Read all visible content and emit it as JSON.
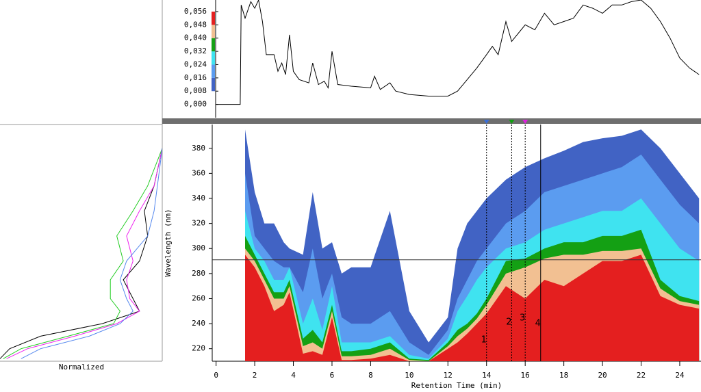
{
  "chart_data": [
    {
      "type": "line",
      "xlim": [
        -0.2,
        25.1
      ],
      "ylim": [
        -0.008,
        0.063
      ],
      "yticks": [
        {
          "value": 0,
          "label": "0,000"
        },
        {
          "value": 0.008,
          "label": "0,008"
        },
        {
          "value": 0.016,
          "label": "0,016"
        },
        {
          "value": 0.024,
          "label": "0,024"
        },
        {
          "value": 0.032,
          "label": "0,032"
        },
        {
          "value": 0.04,
          "label": "0,040"
        },
        {
          "value": 0.048,
          "label": "0,048"
        },
        {
          "value": 0.056,
          "label": "0,056"
        }
      ],
      "color": "#000000",
      "x": [
        -0.2,
        1.25,
        1.3,
        1.5,
        1.8,
        2.0,
        2.2,
        2.4,
        2.6,
        3.0,
        3.2,
        3.4,
        3.6,
        3.8,
        4.0,
        4.3,
        4.8,
        5.0,
        5.3,
        5.6,
        5.8,
        6.0,
        6.3,
        7,
        8,
        8.2,
        8.5,
        9.0,
        9.3,
        10,
        11,
        12,
        12.5,
        13,
        13.5,
        14,
        14.3,
        14.6,
        15,
        15.3,
        16,
        16.5,
        17,
        17.5,
        18,
        18.5,
        19,
        19.5,
        20,
        20.5,
        21,
        21.5,
        22,
        22.5,
        23,
        23.5,
        24,
        24.5,
        25
      ],
      "values": [
        0,
        0,
        0.06,
        0.052,
        0.062,
        0.058,
        0.063,
        0.05,
        0.03,
        0.03,
        0.02,
        0.025,
        0.018,
        0.042,
        0.02,
        0.015,
        0.013,
        0.025,
        0.012,
        0.014,
        0.01,
        0.032,
        0.012,
        0.011,
        0.01,
        0.017,
        0.009,
        0.013,
        0.008,
        0.006,
        0.005,
        0.005,
        0.008,
        0.015,
        0.022,
        0.03,
        0.035,
        0.03,
        0.05,
        0.038,
        0.048,
        0.045,
        0.055,
        0.048,
        0.05,
        0.052,
        0.06,
        0.058,
        0.055,
        0.06,
        0.06,
        0.062,
        0.063,
        0.058,
        0.05,
        0.04,
        0.028,
        0.022,
        0.018
      ]
    },
    {
      "type": "contour",
      "xlim": [
        -0.2,
        25.1
      ],
      "ylim": [
        210,
        399
      ],
      "x_label": "Retention Time (min)",
      "y_label": "Wavelength (nm)",
      "xticks": [
        0,
        2,
        4,
        6,
        8,
        10,
        12,
        14,
        16,
        18,
        20,
        22,
        24
      ],
      "yticks": [
        220,
        240,
        260,
        280,
        300,
        320,
        340,
        360,
        380
      ],
      "x": [
        1.5,
        2,
        2.5,
        3,
        3.5,
        3.8,
        4.5,
        5,
        5.5,
        6,
        6.5,
        7,
        8,
        9,
        10,
        11,
        12,
        12.5,
        13,
        13.5,
        14,
        15,
        16,
        17,
        18,
        19,
        20,
        21,
        22,
        23,
        24,
        25
      ],
      "series": [
        {
          "level": 0.008,
          "color": "#4163c4",
          "values": [
            395,
            345,
            320,
            320,
            305,
            300,
            295,
            345,
            300,
            305,
            280,
            285,
            285,
            330,
            250,
            225,
            245,
            300,
            320,
            330,
            340,
            355,
            365,
            372,
            378,
            385,
            388,
            390,
            395,
            380,
            360,
            340
          ]
        },
        {
          "level": 0.016,
          "color": "#5b9cf0",
          "values": [
            360,
            310,
            300,
            290,
            285,
            285,
            265,
            300,
            260,
            280,
            245,
            240,
            240,
            250,
            225,
            215,
            235,
            260,
            275,
            290,
            300,
            320,
            330,
            345,
            350,
            355,
            360,
            365,
            375,
            355,
            335,
            320
          ]
        },
        {
          "level": 0.024,
          "color": "#3fe3f0",
          "values": [
            330,
            300,
            290,
            275,
            275,
            285,
            240,
            260,
            235,
            270,
            225,
            225,
            225,
            230,
            215,
            212,
            228,
            250,
            262,
            275,
            285,
            300,
            305,
            315,
            320,
            325,
            330,
            330,
            340,
            320,
            300,
            290
          ]
        },
        {
          "level": 0.032,
          "color": "#14a014",
          "values": [
            310,
            295,
            280,
            265,
            265,
            275,
            228,
            235,
            225,
            255,
            218,
            218,
            220,
            225,
            212,
            211,
            225,
            235,
            240,
            248,
            260,
            290,
            292,
            300,
            305,
            305,
            310,
            310,
            315,
            275,
            262,
            258
          ]
        },
        {
          "level": 0.04,
          "color": "#f2c092",
          "values": [
            300,
            290,
            275,
            260,
            260,
            270,
            222,
            225,
            220,
            250,
            214,
            214,
            215,
            220,
            211,
            210,
            222,
            230,
            236,
            244,
            255,
            280,
            285,
            292,
            295,
            295,
            298,
            298,
            300,
            268,
            258,
            255
          ]
        },
        {
          "level": 0.048,
          "color": "#e41f1f",
          "values": [
            295,
            285,
            270,
            250,
            255,
            265,
            216,
            218,
            215,
            245,
            211,
            211,
            212,
            215,
            210,
            210,
            220,
            225,
            232,
            240,
            248,
            270,
            260,
            275,
            270,
            280,
            290,
            290,
            295,
            262,
            255,
            252
          ]
        }
      ],
      "markers": [
        {
          "label": "1",
          "x": 14.0,
          "color": "#3a6fd8",
          "dashed": true
        },
        {
          "label": "2",
          "x": 15.3,
          "color": "#10a010",
          "dashed": true
        },
        {
          "label": "3",
          "x": 16.0,
          "color": "#e020e0",
          "dashed": true
        },
        {
          "label": "4",
          "x": 16.8,
          "color": "#000000",
          "dashed": false
        }
      ],
      "crosshair_wavelength": 291
    },
    {
      "type": "spectra",
      "x_label": "Normalized",
      "xlim": [
        1,
        0
      ],
      "ylim": [
        210,
        399
      ],
      "y": [
        212,
        220,
        230,
        240,
        250,
        260,
        275,
        290,
        310,
        330,
        350,
        380
      ],
      "series": [
        {
          "color": "#000000",
          "values": [
            1,
            0.94,
            0.75,
            0.37,
            0.14,
            0.18,
            0.24,
            0.14,
            0.09,
            0.11,
            0.05,
            0
          ]
        },
        {
          "color": "#22cc22",
          "values": [
            0.98,
            0.87,
            0.58,
            0.3,
            0.26,
            0.32,
            0.32,
            0.24,
            0.28,
            0.18,
            0.09,
            0
          ]
        },
        {
          "color": "#ee22ee",
          "values": [
            0.96,
            0.83,
            0.54,
            0.28,
            0.14,
            0.2,
            0.22,
            0.18,
            0.22,
            0.14,
            0.05,
            0
          ]
        },
        {
          "color": "#5588ee",
          "values": [
            0.87,
            0.75,
            0.45,
            0.26,
            0.18,
            0.22,
            0.26,
            0.22,
            0.09,
            0.05,
            0.03,
            0
          ]
        }
      ]
    }
  ]
}
